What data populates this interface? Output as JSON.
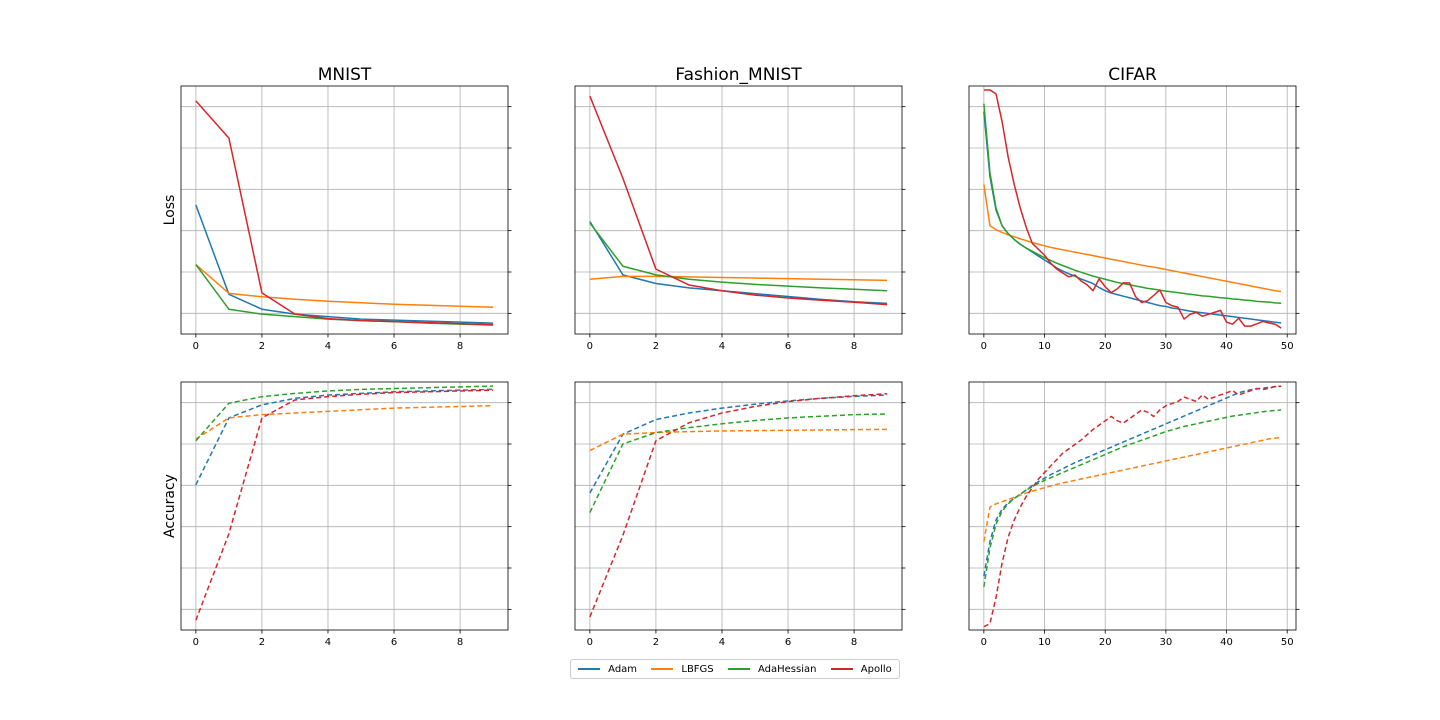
{
  "chart_data": {
    "type": "line",
    "row_labels": [
      "Loss",
      "Accuracy"
    ],
    "columns": [
      {
        "title": "MNIST",
        "x_ticks": [
          0,
          2,
          4,
          6,
          8
        ],
        "x_range": [
          -0.45,
          9.45
        ],
        "loss": {
          "y_range": [
            0.9,
            5.9
          ],
          "series": [
            {
              "name": "Adam",
              "values": [
                3.5,
                1.7,
                1.4,
                1.3,
                1.25,
                1.2,
                1.18,
                1.16,
                1.14,
                1.12
              ]
            },
            {
              "name": "LBFGS",
              "values": [
                2.3,
                1.72,
                1.65,
                1.6,
                1.56,
                1.53,
                1.5,
                1.48,
                1.46,
                1.44
              ]
            },
            {
              "name": "AdaHessian",
              "values": [
                2.3,
                1.4,
                1.3,
                1.25,
                1.2,
                1.17,
                1.15,
                1.12,
                1.1,
                1.08
              ]
            },
            {
              "name": "Apollo",
              "values": [
                5.6,
                4.85,
                1.73,
                1.3,
                1.21,
                1.17,
                1.15,
                1.13,
                1.11,
                1.09
              ]
            }
          ]
        },
        "accuracy": {
          "y_range": [
            5.0,
            35.4
          ],
          "series": [
            {
              "name": "Adam",
              "values": [
                22.8,
                31.0,
                32.6,
                33.4,
                33.8,
                34.0,
                34.2,
                34.3,
                34.4,
                34.5
              ]
            },
            {
              "name": "LBFGS",
              "values": [
                28.4,
                31.0,
                31.4,
                31.6,
                31.8,
                32.0,
                32.2,
                32.3,
                32.4,
                32.5
              ]
            },
            {
              "name": "AdaHessian",
              "values": [
                28.2,
                32.8,
                33.6,
                34.0,
                34.3,
                34.5,
                34.6,
                34.7,
                34.8,
                34.9
              ]
            },
            {
              "name": "Apollo",
              "values": [
                6.2,
                16.8,
                31.0,
                33.2,
                33.6,
                33.9,
                34.1,
                34.2,
                34.3,
                34.4
              ]
            }
          ]
        }
      },
      {
        "title": "Fashion_MNIST",
        "x_ticks": [
          0,
          2,
          4,
          6,
          8
        ],
        "x_range": [
          -0.45,
          9.45
        ],
        "loss": {
          "y_range": [
            -0.4,
            8.2
          ],
          "series": [
            {
              "name": "Adam",
              "values": [
                3.5,
                1.65,
                1.35,
                1.2,
                1.1,
                1.0,
                0.9,
                0.8,
                0.72,
                0.66
              ]
            },
            {
              "name": "LBFGS",
              "values": [
                1.5,
                1.6,
                1.6,
                1.58,
                1.56,
                1.54,
                1.52,
                1.5,
                1.48,
                1.46
              ]
            },
            {
              "name": "AdaHessian",
              "values": [
                3.45,
                1.95,
                1.65,
                1.5,
                1.4,
                1.32,
                1.26,
                1.2,
                1.15,
                1.1
              ]
            },
            {
              "name": "Apollo",
              "values": [
                7.85,
                5.0,
                1.85,
                1.3,
                1.1,
                0.95,
                0.85,
                0.77,
                0.7,
                0.62
              ]
            }
          ]
        },
        "accuracy": {
          "y_range": [
            -0.6,
            7.0
          ],
          "series": [
            {
              "name": "Adam",
              "values": [
                3.6,
                5.4,
                5.85,
                6.05,
                6.2,
                6.32,
                6.42,
                6.5,
                6.56,
                6.6
              ]
            },
            {
              "name": "LBFGS",
              "values": [
                4.9,
                5.4,
                5.45,
                5.48,
                5.5,
                5.51,
                5.52,
                5.53,
                5.54,
                5.55
              ]
            },
            {
              "name": "AdaHessian",
              "values": [
                3.0,
                5.1,
                5.45,
                5.6,
                5.72,
                5.82,
                5.9,
                5.95,
                6.0,
                6.02
              ]
            },
            {
              "name": "Apollo",
              "values": [
                -0.2,
                2.3,
                5.2,
                5.75,
                6.05,
                6.25,
                6.4,
                6.5,
                6.58,
                6.64
              ]
            }
          ]
        }
      },
      {
        "title": "CIFAR",
        "x_ticks": [
          0,
          10,
          20,
          30,
          40,
          50
        ],
        "x_range": [
          -2.45,
          51.45
        ],
        "loss": {
          "y_range": [
            0.8,
            7.1
          ],
          "series": [
            {
              "name": "Adam",
              "values": [
                6.45,
                4.8,
                3.95,
                3.55,
                3.35,
                3.2,
                3.08,
                2.98,
                2.88,
                2.78,
                2.68,
                2.58,
                2.48,
                2.4,
                2.33,
                2.27,
                2.2,
                2.14,
                2.08,
                1.98,
                1.9,
                1.84,
                1.8,
                1.76,
                1.72,
                1.68,
                1.64,
                1.6,
                1.56,
                1.52,
                1.5,
                1.46,
                1.44,
                1.41,
                1.38,
                1.36,
                1.34,
                1.32,
                1.3,
                1.28,
                1.26,
                1.24,
                1.22,
                1.2,
                1.18,
                1.16,
                1.14,
                1.12,
                1.1,
                1.08
              ]
            },
            {
              "name": "LBFGS",
              "values": [
                4.6,
                3.55,
                3.45,
                3.38,
                3.32,
                3.27,
                3.22,
                3.17,
                3.12,
                3.08,
                3.04,
                3.0,
                2.97,
                2.94,
                2.91,
                2.88,
                2.85,
                2.82,
                2.79,
                2.76,
                2.73,
                2.7,
                2.67,
                2.64,
                2.61,
                2.58,
                2.55,
                2.52,
                2.5,
                2.47,
                2.44,
                2.41,
                2.38,
                2.35,
                2.32,
                2.29,
                2.26,
                2.23,
                2.2,
                2.17,
                2.14,
                2.11,
                2.08,
                2.05,
                2.02,
                1.99,
                1.96,
                1.93,
                1.9,
                1.88
              ]
            },
            {
              "name": "AdaHessian",
              "values": [
                6.65,
                4.9,
                4.0,
                3.55,
                3.35,
                3.2,
                3.08,
                2.98,
                2.9,
                2.82,
                2.74,
                2.67,
                2.6,
                2.54,
                2.48,
                2.42,
                2.37,
                2.32,
                2.27,
                2.23,
                2.19,
                2.15,
                2.11,
                2.08,
                2.05,
                2.02,
                1.99,
                1.96,
                1.94,
                1.91,
                1.89,
                1.87,
                1.85,
                1.83,
                1.81,
                1.79,
                1.77,
                1.76,
                1.74,
                1.72,
                1.71,
                1.69,
                1.68,
                1.66,
                1.65,
                1.63,
                1.62,
                1.61,
                1.59,
                1.58
              ]
            },
            {
              "name": "Apollo",
              "values": [
                7.0,
                7.0,
                6.9,
                6.2,
                5.3,
                4.6,
                4.0,
                3.5,
                3.1,
                2.95,
                2.8,
                2.6,
                2.45,
                2.35,
                2.25,
                2.3,
                2.15,
                2.05,
                1.9,
                2.2,
                2.0,
                1.85,
                1.95,
                2.1,
                2.1,
                1.75,
                1.6,
                1.65,
                1.78,
                1.92,
                1.6,
                1.52,
                1.48,
                1.18,
                1.3,
                1.35,
                1.25,
                1.3,
                1.35,
                1.4,
                1.1,
                1.05,
                1.2,
                1.0,
                1.0,
                1.06,
                1.12,
                1.08,
                1.05,
                0.95
              ]
            }
          ]
        },
        "accuracy": {
          "y_range": [
            0.7,
            12.2
          ],
          "series": [
            {
              "name": "Adam",
              "values": [
                3.2,
                4.8,
                5.8,
                6.3,
                6.6,
                6.8,
                7.0,
                7.2,
                7.4,
                7.58,
                7.74,
                7.9,
                8.04,
                8.18,
                8.32,
                8.46,
                8.58,
                8.7,
                8.82,
                8.94,
                9.06,
                9.18,
                9.3,
                9.42,
                9.54,
                9.66,
                9.78,
                9.9,
                10.02,
                10.14,
                10.26,
                10.38,
                10.5,
                10.62,
                10.74,
                10.86,
                10.98,
                11.1,
                11.22,
                11.34,
                11.46,
                11.58,
                11.7,
                11.78,
                11.84,
                11.88,
                11.92,
                11.95,
                11.98,
                12.0
              ]
            },
            {
              "name": "LBFGS",
              "values": [
                4.8,
                6.4,
                6.55,
                6.65,
                6.75,
                6.85,
                6.95,
                7.05,
                7.14,
                7.22,
                7.3,
                7.38,
                7.45,
                7.52,
                7.58,
                7.64,
                7.7,
                7.76,
                7.82,
                7.88,
                7.94,
                8.0,
                8.06,
                8.12,
                8.18,
                8.24,
                8.3,
                8.36,
                8.42,
                8.48,
                8.54,
                8.6,
                8.66,
                8.72,
                8.78,
                8.84,
                8.9,
                8.96,
                9.02,
                9.08,
                9.14,
                9.2,
                9.26,
                9.32,
                9.38,
                9.44,
                9.5,
                9.56,
                9.6,
                9.62
              ]
            },
            {
              "name": "AdaHessian",
              "values": [
                2.7,
                4.5,
                5.6,
                6.2,
                6.55,
                6.8,
                7.0,
                7.18,
                7.35,
                7.5,
                7.64,
                7.76,
                7.88,
                8.0,
                8.12,
                8.24,
                8.36,
                8.48,
                8.6,
                8.72,
                8.84,
                8.96,
                9.08,
                9.2,
                9.3,
                9.4,
                9.5,
                9.6,
                9.7,
                9.8,
                9.9,
                9.98,
                10.06,
                10.14,
                10.2,
                10.26,
                10.32,
                10.38,
                10.44,
                10.5,
                10.56,
                10.62,
                10.66,
                10.7,
                10.74,
                10.78,
                10.82,
                10.86,
                10.88,
                10.9
              ]
            },
            {
              "name": "Apollo",
              "values": [
                0.85,
                1.0,
                2.2,
                3.8,
                5.0,
                5.8,
                6.4,
                6.9,
                7.3,
                7.7,
                8.0,
                8.3,
                8.6,
                8.9,
                9.1,
                9.3,
                9.5,
                9.75,
                10.0,
                10.2,
                10.4,
                10.6,
                10.4,
                10.3,
                10.5,
                10.7,
                10.9,
                10.8,
                10.6,
                10.9,
                11.1,
                11.2,
                11.3,
                11.5,
                11.4,
                11.3,
                11.6,
                11.4,
                11.5,
                11.6,
                11.7,
                11.8,
                11.6,
                11.7,
                11.8,
                11.9,
                11.85,
                11.9,
                12.0,
                12.0
              ]
            }
          ]
        }
      }
    ],
    "legend": {
      "placement": "bottom-center",
      "entries": [
        {
          "name": "Adam",
          "color": "#1f77b4"
        },
        {
          "name": "LBFGS",
          "color": "#ff7f0e"
        },
        {
          "name": "AdaHessian",
          "color": "#2ca02c"
        },
        {
          "name": "Apollo",
          "color": "#d62728"
        }
      ]
    },
    "line_styles": {
      "loss": "solid",
      "accuracy": "dashed"
    },
    "grid": true
  }
}
